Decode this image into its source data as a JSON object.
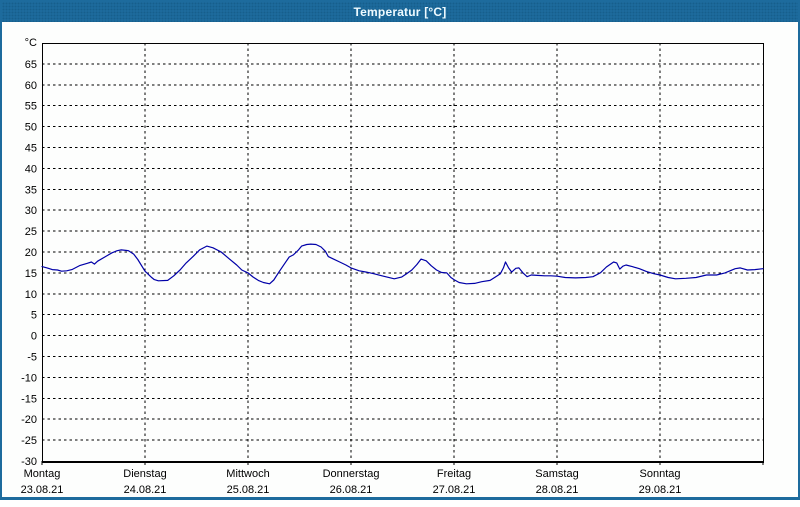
{
  "window": {
    "title": "Temperatur [°C]"
  },
  "colors": {
    "titlebar_bg": "#1e6da0",
    "titlebar_dot": "#175e8c",
    "titlebar_text": "#eefaff",
    "window_border": "#1d6b9d",
    "plot_bg": "#fdfefd",
    "frame": "#000000",
    "grid": "#000000",
    "line": "#0000a8",
    "label_text": "#000000"
  },
  "axes": {
    "y_unit": "°C",
    "y_ticks": [
      65,
      60,
      55,
      50,
      45,
      40,
      35,
      30,
      25,
      20,
      15,
      10,
      5,
      0,
      -5,
      -10,
      -15,
      -20,
      -25,
      -30
    ],
    "x_days": [
      {
        "name": "Montag",
        "date": "23.08.21"
      },
      {
        "name": "Dienstag",
        "date": "24.08.21"
      },
      {
        "name": "Mittwoch",
        "date": "25.08.21"
      },
      {
        "name": "Donnerstag",
        "date": "26.08.21"
      },
      {
        "name": "Freitag",
        "date": "27.08.21"
      },
      {
        "name": "Samstag",
        "date": "28.08.21"
      },
      {
        "name": "Sonntag",
        "date": "29.08.21"
      }
    ]
  },
  "chart_data": {
    "type": "line",
    "title": "Temperatur [°C]",
    "ylabel": "°C",
    "xlabel": "",
    "ylim": [
      -30,
      70
    ],
    "y_tick_step": 5,
    "xlim_days": [
      0,
      7
    ],
    "x_unit": "days from Montag 23.08.21 00:00",
    "grid": true,
    "legend": "none",
    "series": [
      {
        "name": "Temperatur",
        "color": "#0000a8",
        "points": [
          [
            0.0,
            16.5
          ],
          [
            0.05,
            16.2
          ],
          [
            0.1,
            15.8
          ],
          [
            0.15,
            15.7
          ],
          [
            0.19,
            15.4
          ],
          [
            0.24,
            15.5
          ],
          [
            0.29,
            15.8
          ],
          [
            0.37,
            16.8
          ],
          [
            0.44,
            17.3
          ],
          [
            0.48,
            17.6
          ],
          [
            0.51,
            17.1
          ],
          [
            0.54,
            17.8
          ],
          [
            0.61,
            18.8
          ],
          [
            0.68,
            19.8
          ],
          [
            0.73,
            20.3
          ],
          [
            0.77,
            20.5
          ],
          [
            0.84,
            20.3
          ],
          [
            0.89,
            19.5
          ],
          [
            0.93,
            18.2
          ],
          [
            1.0,
            15.4
          ],
          [
            1.06,
            14.0
          ],
          [
            1.09,
            13.4
          ],
          [
            1.13,
            13.1
          ],
          [
            1.22,
            13.2
          ],
          [
            1.28,
            14.3
          ],
          [
            1.34,
            15.7
          ],
          [
            1.4,
            17.4
          ],
          [
            1.47,
            19.0
          ],
          [
            1.53,
            20.5
          ],
          [
            1.6,
            21.4
          ],
          [
            1.66,
            21.0
          ],
          [
            1.74,
            20.0
          ],
          [
            1.82,
            18.3
          ],
          [
            1.89,
            16.9
          ],
          [
            1.94,
            15.7
          ],
          [
            2.0,
            15.0
          ],
          [
            2.05,
            14.0
          ],
          [
            2.1,
            13.2
          ],
          [
            2.15,
            12.7
          ],
          [
            2.21,
            12.4
          ],
          [
            2.25,
            13.3
          ],
          [
            2.3,
            15.2
          ],
          [
            2.36,
            17.4
          ],
          [
            2.4,
            18.8
          ],
          [
            2.44,
            19.3
          ],
          [
            2.49,
            20.5
          ],
          [
            2.52,
            21.4
          ],
          [
            2.57,
            21.8
          ],
          [
            2.61,
            21.9
          ],
          [
            2.66,
            21.8
          ],
          [
            2.71,
            21.2
          ],
          [
            2.75,
            20.2
          ],
          [
            2.78,
            18.9
          ],
          [
            2.83,
            18.3
          ],
          [
            2.89,
            17.6
          ],
          [
            2.95,
            16.9
          ],
          [
            3.0,
            16.2
          ],
          [
            3.08,
            15.5
          ],
          [
            3.15,
            15.2
          ],
          [
            3.22,
            14.8
          ],
          [
            3.3,
            14.3
          ],
          [
            3.42,
            13.6
          ],
          [
            3.49,
            14.0
          ],
          [
            3.54,
            14.8
          ],
          [
            3.59,
            15.7
          ],
          [
            3.64,
            17.0
          ],
          [
            3.68,
            18.3
          ],
          [
            3.73,
            17.9
          ],
          [
            3.78,
            16.7
          ],
          [
            3.83,
            15.7
          ],
          [
            3.88,
            15.1
          ],
          [
            3.93,
            15.0
          ],
          [
            3.97,
            13.9
          ],
          [
            4.0,
            13.4
          ],
          [
            4.05,
            12.7
          ],
          [
            4.12,
            12.4
          ],
          [
            4.2,
            12.5
          ],
          [
            4.27,
            12.9
          ],
          [
            4.35,
            13.2
          ],
          [
            4.4,
            14.0
          ],
          [
            4.45,
            14.8
          ],
          [
            4.48,
            16.2
          ],
          [
            4.5,
            17.6
          ],
          [
            4.53,
            16.2
          ],
          [
            4.56,
            15.2
          ],
          [
            4.6,
            16.1
          ],
          [
            4.63,
            16.2
          ],
          [
            4.67,
            15.0
          ],
          [
            4.71,
            14.1
          ],
          [
            4.75,
            14.5
          ],
          [
            4.81,
            14.4
          ],
          [
            4.88,
            14.3
          ],
          [
            4.94,
            14.3
          ],
          [
            5.0,
            14.2
          ],
          [
            5.08,
            13.9
          ],
          [
            5.18,
            13.8
          ],
          [
            5.28,
            13.9
          ],
          [
            5.35,
            14.1
          ],
          [
            5.42,
            15.0
          ],
          [
            5.48,
            16.4
          ],
          [
            5.55,
            17.6
          ],
          [
            5.58,
            17.4
          ],
          [
            5.61,
            15.9
          ],
          [
            5.64,
            16.6
          ],
          [
            5.67,
            16.9
          ],
          [
            5.73,
            16.5
          ],
          [
            5.8,
            16.0
          ],
          [
            5.87,
            15.3
          ],
          [
            5.94,
            14.8
          ],
          [
            6.0,
            14.5
          ],
          [
            6.08,
            13.9
          ],
          [
            6.15,
            13.6
          ],
          [
            6.25,
            13.7
          ],
          [
            6.35,
            13.9
          ],
          [
            6.45,
            14.5
          ],
          [
            6.55,
            14.5
          ],
          [
            6.63,
            15.0
          ],
          [
            6.73,
            16.0
          ],
          [
            6.78,
            16.2
          ],
          [
            6.85,
            15.7
          ],
          [
            6.92,
            15.8
          ],
          [
            7.0,
            16.0
          ]
        ]
      }
    ]
  }
}
